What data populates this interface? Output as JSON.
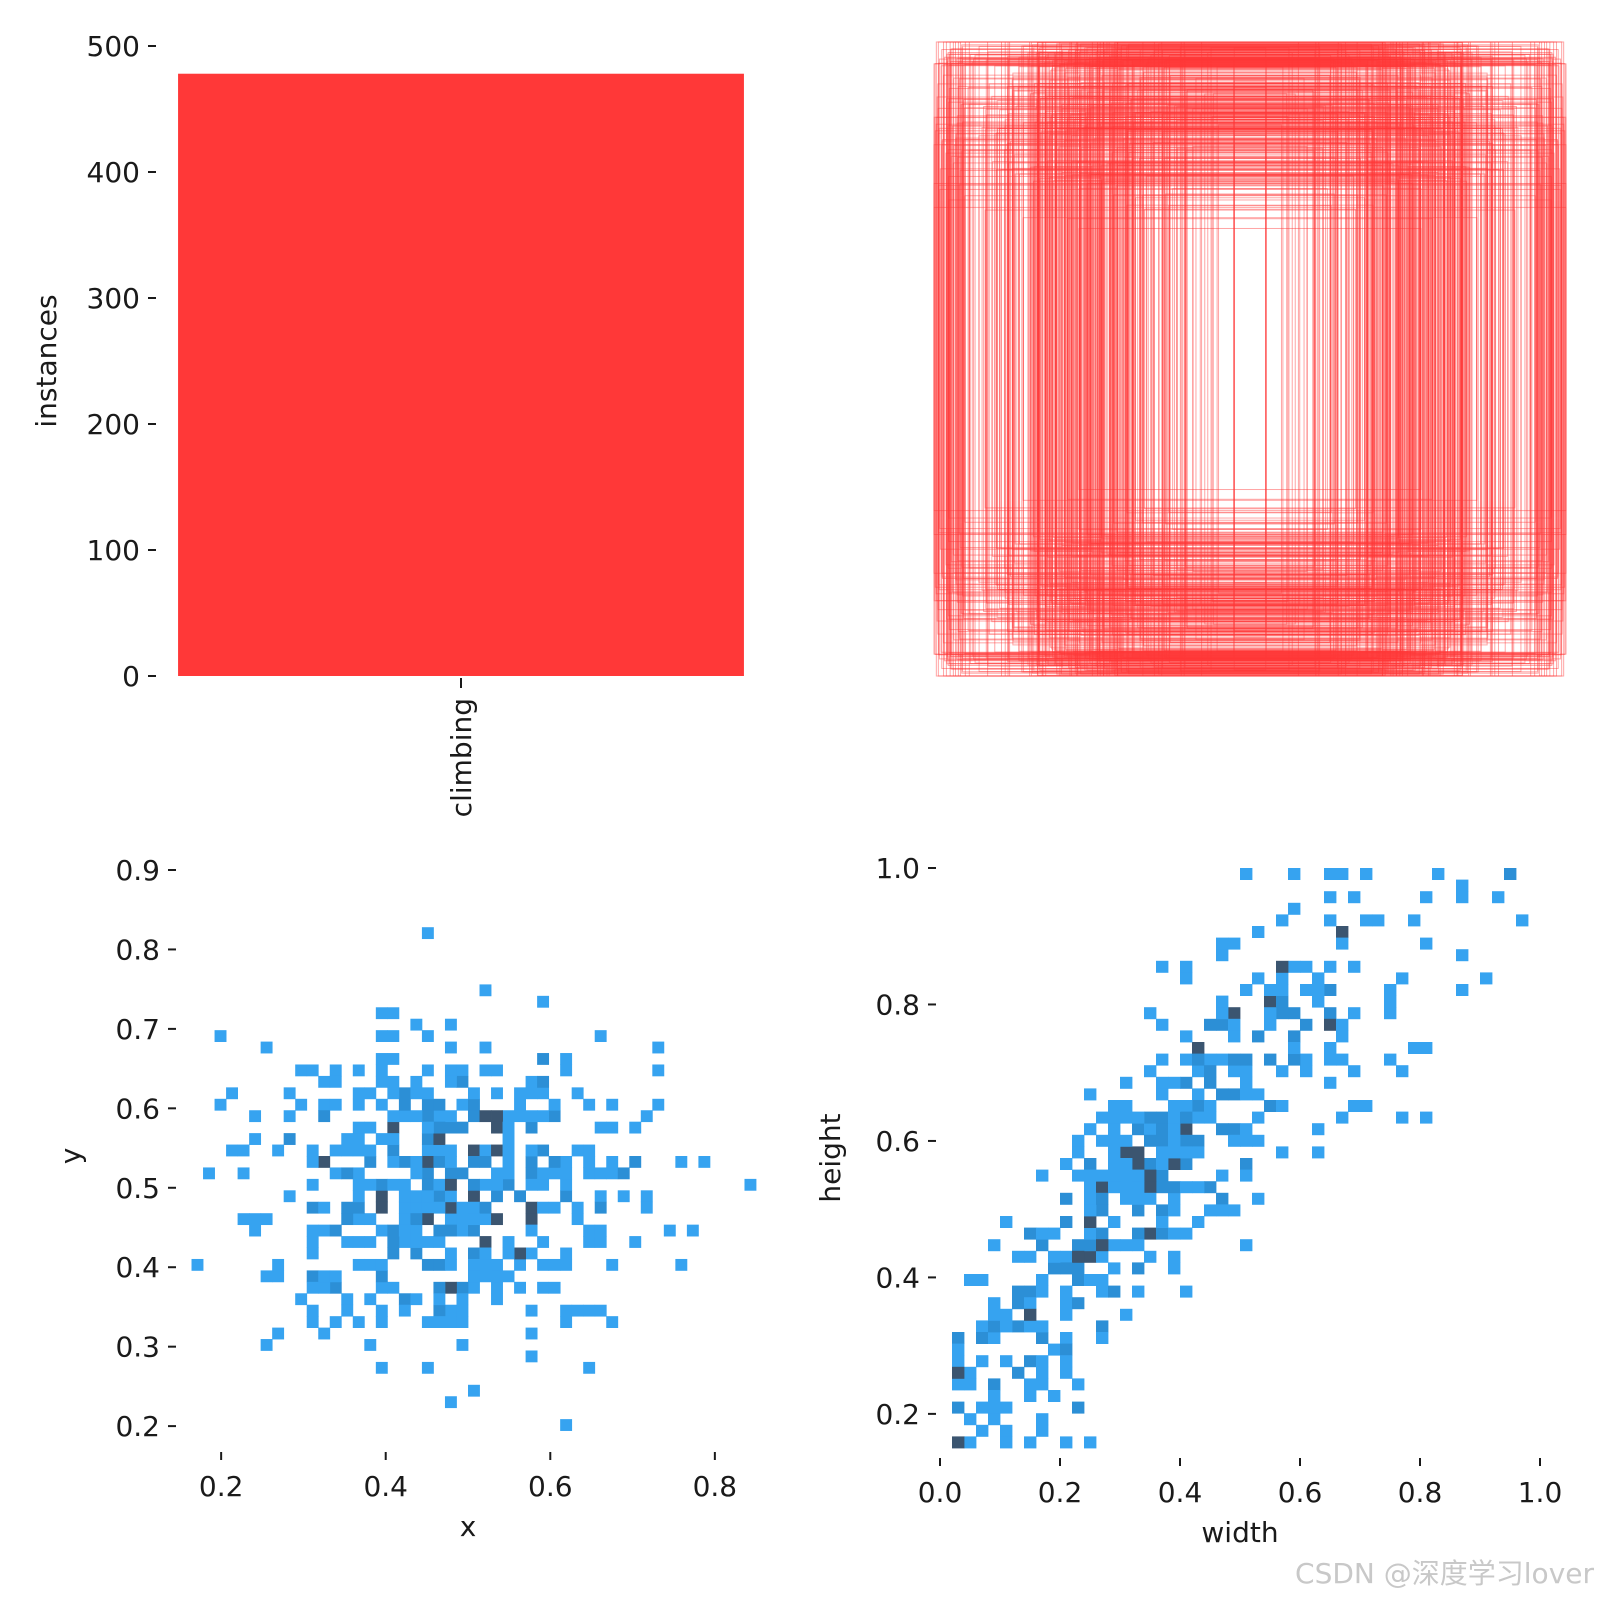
{
  "colors": {
    "bar": "#ff3838",
    "boxes": "#ff3838",
    "hist_light": "#36a3f0",
    "hist_mid": "#2c8fd6",
    "hist_dark": "#3b5570",
    "text": "#1a1a1a"
  },
  "watermark": "CSDN @深度学习lover",
  "chart_data": [
    {
      "id": "instances",
      "type": "bar",
      "categories": [
        "climbing"
      ],
      "values": [
        478
      ],
      "ylabel": "instances",
      "ylim": [
        0,
        500
      ],
      "yticks": [
        0,
        100,
        200,
        300,
        400,
        500
      ],
      "ytick_labels": [
        "0",
        "100",
        "200",
        "300",
        "400",
        "500"
      ],
      "grid": false
    },
    {
      "id": "boxes",
      "type": "scatter",
      "description_free": true,
      "xlim": [
        0,
        1
      ],
      "ylim": [
        0,
        1
      ],
      "box_count": 478,
      "grid": false
    },
    {
      "id": "xy",
      "type": "heatmap",
      "xlabel": "x",
      "ylabel": "y",
      "xlim": [
        0.15,
        0.85
      ],
      "ylim": [
        0.18,
        0.9
      ],
      "xticks": [
        0.2,
        0.4,
        0.6,
        0.8
      ],
      "xtick_labels": [
        "0.2",
        "0.4",
        "0.6",
        "0.8"
      ],
      "yticks": [
        0.2,
        0.3,
        0.4,
        0.5,
        0.6,
        0.7,
        0.8,
        0.9
      ],
      "ytick_labels": [
        "0.2",
        "0.3",
        "0.4",
        "0.5",
        "0.6",
        "0.7",
        "0.8",
        "0.9"
      ],
      "bins": 50,
      "center": [
        0.48,
        0.5
      ],
      "spread": [
        0.12,
        0.11
      ],
      "grid": false
    },
    {
      "id": "wh",
      "type": "heatmap",
      "xlabel": "width",
      "ylabel": "height",
      "xlim": [
        0,
        1
      ],
      "ylim": [
        0.15,
        1.0
      ],
      "xticks": [
        0.0,
        0.2,
        0.4,
        0.6,
        0.8,
        1.0
      ],
      "xtick_labels": [
        "0.0",
        "0.2",
        "0.4",
        "0.6",
        "0.8",
        "1.0"
      ],
      "yticks": [
        0.2,
        0.4,
        0.6,
        0.8,
        1.0
      ],
      "ytick_labels": [
        "0.2",
        "0.4",
        "0.6",
        "0.8",
        "1.0"
      ],
      "bins": 50,
      "grid": false
    }
  ]
}
